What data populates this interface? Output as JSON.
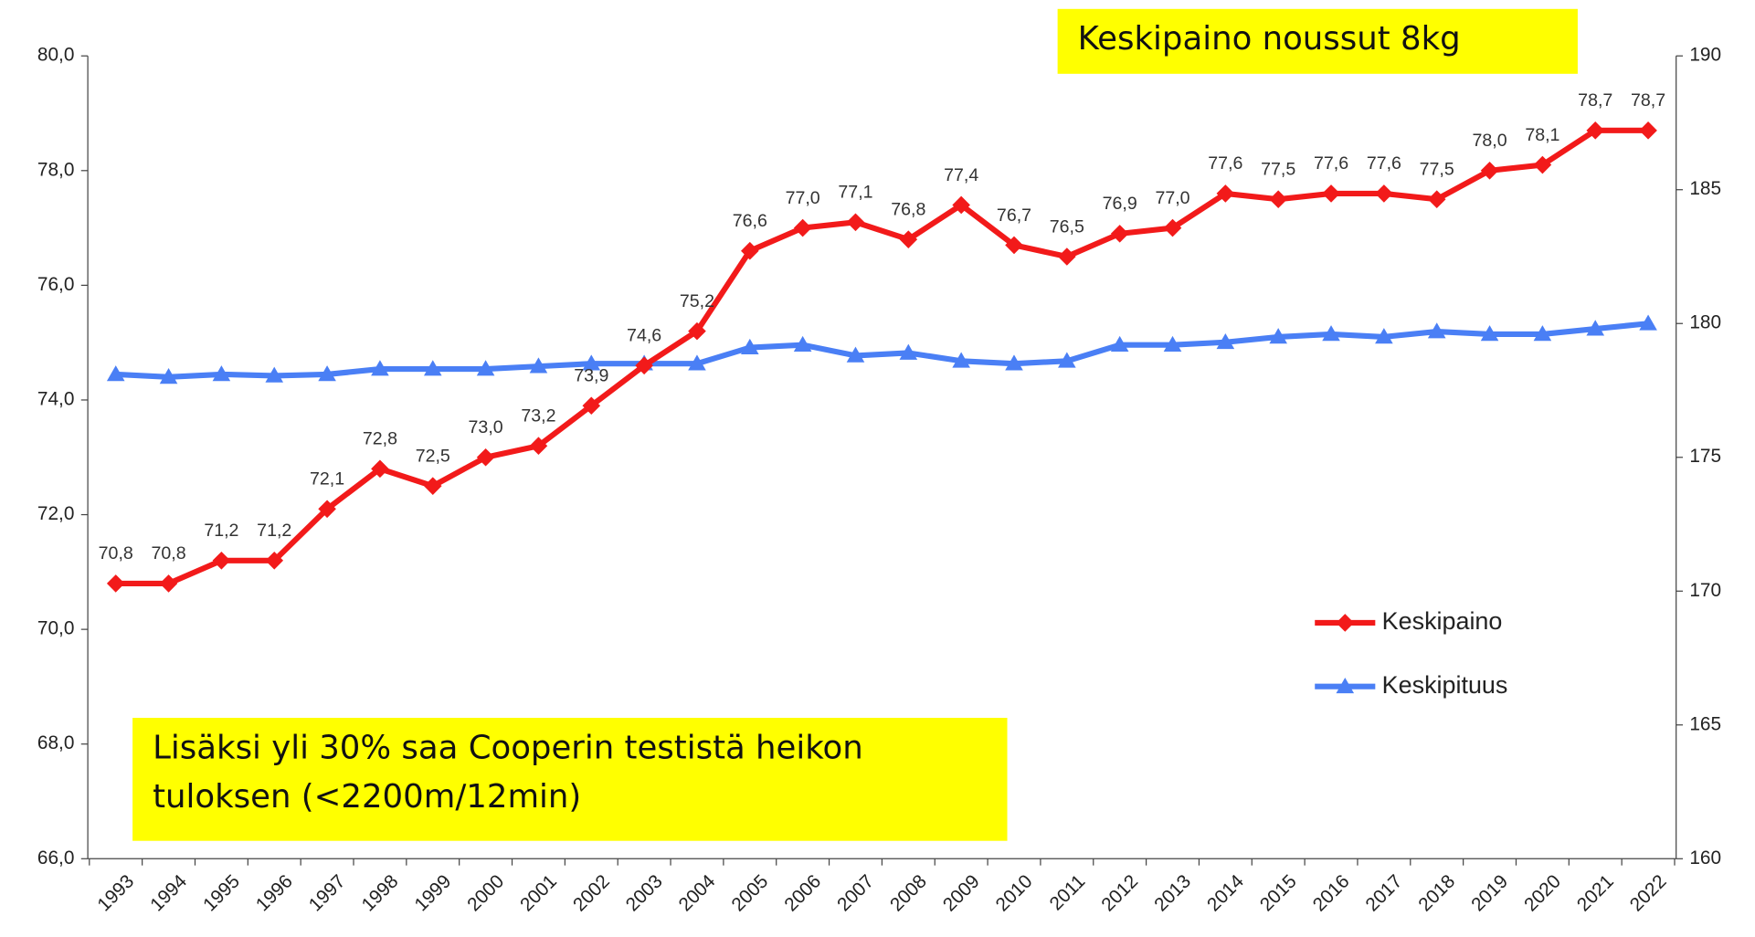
{
  "chart_data": {
    "type": "line",
    "categories": [
      "1993",
      "1994",
      "1995",
      "1996",
      "1997",
      "1998",
      "1999",
      "2000",
      "2001",
      "2002",
      "2003",
      "2004",
      "2005",
      "2006",
      "2007",
      "2008",
      "2009",
      "2010",
      "2011",
      "2012",
      "2013",
      "2014",
      "2015",
      "2016",
      "2017",
      "2018",
      "2019",
      "2020",
      "2021",
      "2022"
    ],
    "series": [
      {
        "name": "Keskipituus",
        "color": "#4a7ff5",
        "marker": "triangle",
        "axis": "y2",
        "values": [
          178.1,
          178.0,
          178.1,
          178.05,
          178.1,
          178.3,
          178.3,
          178.3,
          178.4,
          178.5,
          178.5,
          178.5,
          179.1,
          179.2,
          178.8,
          178.9,
          178.6,
          178.5,
          178.6,
          179.2,
          179.2,
          179.3,
          179.5,
          179.6,
          179.5,
          179.7,
          179.6,
          179.6,
          179.8,
          180.0
        ]
      },
      {
        "name": "Keskipaino",
        "color": "#f21a1a",
        "marker": "diamond",
        "axis": "y",
        "values": [
          70.8,
          70.8,
          71.2,
          71.2,
          72.1,
          72.8,
          72.5,
          73.0,
          73.2,
          73.9,
          74.6,
          75.2,
          76.6,
          77.0,
          77.1,
          76.8,
          77.4,
          76.7,
          76.5,
          76.9,
          77.0,
          77.6,
          77.5,
          77.6,
          77.6,
          77.5,
          78.0,
          78.1,
          78.7,
          78.7
        ],
        "value_labels": [
          "70,8",
          "70,8",
          "71,2",
          "71,2",
          "72,1",
          "72,8",
          "72,5",
          "73,0",
          "73,2",
          "73,9",
          "74,6",
          "75,2",
          "76,6",
          "77,0",
          "77,1",
          "76,8",
          "77,4",
          "76,7",
          "76,5",
          "76,9",
          "77,0",
          "77,6",
          "77,5",
          "77,6",
          "77,6",
          "77,5",
          "78,0",
          "78,1",
          "78,7",
          "78,7"
        ]
      }
    ],
    "ylim": [
      66,
      80
    ],
    "yticks": [
      {
        "value": 66,
        "label": "66,0"
      },
      {
        "value": 68,
        "label": "68,0"
      },
      {
        "value": 70,
        "label": "70,0"
      },
      {
        "value": 72,
        "label": "72,0"
      },
      {
        "value": 74,
        "label": "74,0"
      },
      {
        "value": 76,
        "label": "76,0"
      },
      {
        "value": 78,
        "label": "78,0"
      },
      {
        "value": 80,
        "label": "80,0"
      }
    ],
    "y2lim": [
      160,
      190
    ],
    "y2ticks": [
      160,
      165,
      170,
      175,
      180,
      185,
      190
    ],
    "legend_position": "lower right",
    "annotations": [
      {
        "lines": [
          "Keskipaino noussut 8kg"
        ]
      },
      {
        "lines": [
          "Lisäksi yli 30% saa Cooperin testistä heikon",
          "tuloksen (<2200m/12min)"
        ]
      }
    ]
  }
}
